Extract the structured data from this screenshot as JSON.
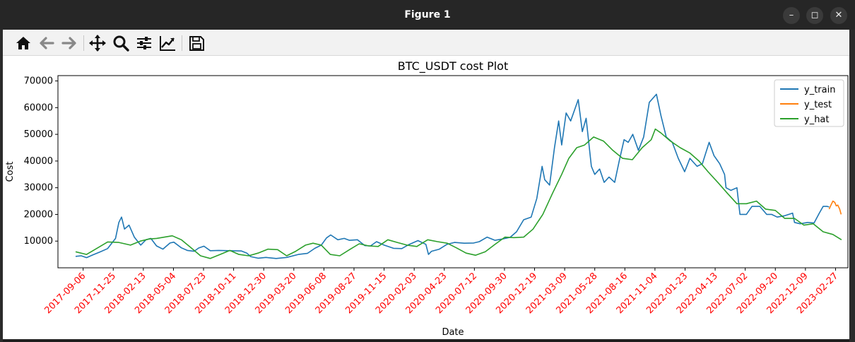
{
  "window": {
    "title": "Figure 1"
  },
  "toolbar": {
    "buttons": [
      {
        "name": "home-icon"
      },
      {
        "name": "back-icon"
      },
      {
        "name": "forward-icon"
      },
      {
        "name": "pan-icon"
      },
      {
        "name": "zoom-icon"
      },
      {
        "name": "configure-subplots-icon"
      },
      {
        "name": "edit-axis-icon"
      },
      {
        "name": "save-icon"
      }
    ]
  },
  "chart_data": {
    "type": "line",
    "title": "BTC_USDT cost Plot",
    "xlabel": "Date",
    "ylabel": "Cost",
    "ylim": [
      0,
      72000
    ],
    "xlim": [
      "2017-07-01",
      "2023-04-01"
    ],
    "yticks": [
      10000,
      20000,
      30000,
      40000,
      50000,
      60000,
      70000
    ],
    "xticks": [
      "2017-09-06",
      "2017-11-25",
      "2018-02-13",
      "2018-05-04",
      "2018-07-23",
      "2018-10-11",
      "2018-12-30",
      "2019-03-20",
      "2019-06-08",
      "2019-08-27",
      "2019-11-15",
      "2020-02-03",
      "2020-04-23",
      "2020-07-12",
      "2020-09-30",
      "2020-12-19",
      "2021-03-09",
      "2021-05-28",
      "2021-08-16",
      "2021-11-04",
      "2022-01-23",
      "2022-04-13",
      "2022-07-02",
      "2022-09-20",
      "2022-12-09",
      "2023-02-27"
    ],
    "tick_label_color": "#ff0000",
    "grid": false,
    "legend_position": "top-right",
    "series": [
      {
        "name": "y_train",
        "color": "#1f77b4",
        "x": [
          "2017-08-17",
          "2017-09-01",
          "2017-09-15",
          "2017-10-01",
          "2017-10-20",
          "2017-11-10",
          "2017-12-01",
          "2017-12-10",
          "2017-12-17",
          "2017-12-25",
          "2018-01-06",
          "2018-01-20",
          "2018-02-06",
          "2018-02-20",
          "2018-03-05",
          "2018-03-20",
          "2018-04-06",
          "2018-04-25",
          "2018-05-05",
          "2018-05-25",
          "2018-06-10",
          "2018-06-28",
          "2018-07-10",
          "2018-07-24",
          "2018-08-10",
          "2018-09-01",
          "2018-10-01",
          "2018-11-01",
          "2018-11-15",
          "2018-11-25",
          "2018-12-15",
          "2019-01-05",
          "2019-02-01",
          "2019-03-01",
          "2019-04-01",
          "2019-04-25",
          "2019-05-15",
          "2019-06-01",
          "2019-06-15",
          "2019-06-26",
          "2019-07-15",
          "2019-08-01",
          "2019-08-15",
          "2019-09-05",
          "2019-09-25",
          "2019-10-10",
          "2019-10-26",
          "2019-11-15",
          "2019-12-10",
          "2020-01-01",
          "2020-01-20",
          "2020-02-13",
          "2020-03-05",
          "2020-03-12",
          "2020-03-20",
          "2020-04-10",
          "2020-04-30",
          "2020-05-20",
          "2020-06-15",
          "2020-07-10",
          "2020-07-25",
          "2020-08-15",
          "2020-09-05",
          "2020-09-25",
          "2020-10-15",
          "2020-11-01",
          "2020-11-20",
          "2020-12-10",
          "2020-12-25",
          "2021-01-08",
          "2021-01-15",
          "2021-01-28",
          "2021-02-10",
          "2021-02-21",
          "2021-03-01",
          "2021-03-13",
          "2021-03-25",
          "2021-04-14",
          "2021-04-25",
          "2021-05-05",
          "2021-05-19",
          "2021-05-28",
          "2021-06-10",
          "2021-06-22",
          "2021-07-05",
          "2021-07-20",
          "2021-08-01",
          "2021-08-14",
          "2021-08-25",
          "2021-09-06",
          "2021-09-21",
          "2021-10-05",
          "2021-10-20",
          "2021-11-08",
          "2021-11-20",
          "2021-12-04",
          "2021-12-20",
          "2022-01-05",
          "2022-01-22",
          "2022-02-05",
          "2022-02-24",
          "2022-03-10",
          "2022-03-28",
          "2022-04-10",
          "2022-04-25",
          "2022-05-08",
          "2022-05-12",
          "2022-05-25",
          "2022-06-10",
          "2022-06-18",
          "2022-07-05",
          "2022-07-20",
          "2022-08-10",
          "2022-08-28",
          "2022-09-10",
          "2022-09-25",
          "2022-10-15",
          "2022-11-05",
          "2022-11-10",
          "2022-11-25",
          "2022-12-15",
          "2023-01-01",
          "2023-01-15",
          "2023-01-25",
          "2023-02-05",
          "2023-02-10"
        ],
        "values": [
          4300,
          4500,
          3800,
          4800,
          5900,
          7200,
          11000,
          17000,
          19000,
          14500,
          16000,
          11500,
          8500,
          10500,
          11000,
          8200,
          7000,
          9300,
          9600,
          7500,
          6500,
          6200,
          7400,
          8100,
          6400,
          6500,
          6400,
          6300,
          5500,
          4200,
          3600,
          3900,
          3500,
          3900,
          5000,
          5400,
          7300,
          8500,
          11200,
          12300,
          10500,
          11000,
          10300,
          10500,
          8300,
          8200,
          9800,
          8500,
          7300,
          7200,
          8700,
          10200,
          8800,
          5000,
          6200,
          7000,
          8800,
          9500,
          9200,
          9300,
          9800,
          11500,
          10300,
          10800,
          11400,
          13500,
          18000,
          19000,
          26000,
          38000,
          33000,
          31000,
          45000,
          55000,
          46000,
          58000,
          55000,
          63000,
          51000,
          56000,
          38000,
          35000,
          37000,
          32000,
          34000,
          32000,
          40000,
          48000,
          47000,
          50000,
          44000,
          49000,
          62000,
          65000,
          57000,
          49000,
          47000,
          41000,
          36000,
          41000,
          38000,
          39000,
          47000,
          42000,
          39000,
          35000,
          30000,
          29000,
          30000,
          20000,
          20000,
          23000,
          23000,
          20000,
          20000,
          19000,
          19500,
          20500,
          17000,
          16500,
          17000,
          16800,
          20500,
          23000,
          23000,
          22800
        ]
      },
      {
        "name": "y_test",
        "color": "#ff7f0e",
        "x": [
          "2023-02-10",
          "2023-02-15",
          "2023-02-20",
          "2023-02-25",
          "2023-03-01",
          "2023-03-05",
          "2023-03-10",
          "2023-03-14"
        ],
        "values": [
          22000,
          23500,
          25000,
          24500,
          23200,
          23500,
          22000,
          20000
        ]
      },
      {
        "name": "y_hat",
        "color": "#2ca02c",
        "x": [
          "2017-08-17",
          "2017-09-15",
          "2017-10-15",
          "2017-11-10",
          "2017-12-10",
          "2018-01-10",
          "2018-02-05",
          "2018-03-01",
          "2018-03-20",
          "2018-04-10",
          "2018-05-01",
          "2018-05-25",
          "2018-06-20",
          "2018-07-15",
          "2018-08-10",
          "2018-09-05",
          "2018-10-01",
          "2018-10-25",
          "2018-11-20",
          "2018-12-15",
          "2019-01-10",
          "2019-02-05",
          "2019-03-01",
          "2019-03-25",
          "2019-04-20",
          "2019-05-10",
          "2019-06-01",
          "2019-06-25",
          "2019-07-20",
          "2019-08-15",
          "2019-09-10",
          "2019-10-05",
          "2019-10-30",
          "2019-11-25",
          "2019-12-20",
          "2020-01-15",
          "2020-02-10",
          "2020-03-10",
          "2020-04-05",
          "2020-05-01",
          "2020-05-25",
          "2020-06-20",
          "2020-07-15",
          "2020-08-10",
          "2020-09-05",
          "2020-10-01",
          "2020-10-25",
          "2020-11-20",
          "2020-12-15",
          "2021-01-10",
          "2021-02-05",
          "2021-03-01",
          "2021-03-20",
          "2021-04-10",
          "2021-05-01",
          "2021-05-25",
          "2021-06-20",
          "2021-07-15",
          "2021-08-10",
          "2021-09-05",
          "2021-10-01",
          "2021-10-25",
          "2021-11-05",
          "2021-11-20",
          "2021-12-15",
          "2022-01-10",
          "2022-02-05",
          "2022-03-01",
          "2022-03-25",
          "2022-04-20",
          "2022-05-15",
          "2022-06-10",
          "2022-07-05",
          "2022-08-01",
          "2022-08-25",
          "2022-09-20",
          "2022-10-15",
          "2022-11-10",
          "2022-12-05",
          "2022-12-30",
          "2023-01-25",
          "2023-02-20",
          "2023-03-15"
        ],
        "values": [
          6000,
          5000,
          7500,
          9700,
          9500,
          8500,
          10000,
          10800,
          11000,
          11500,
          12000,
          10500,
          7500,
          4500,
          3500,
          5000,
          6500,
          5000,
          4500,
          5500,
          7000,
          6800,
          4500,
          6200,
          8500,
          9200,
          8500,
          5000,
          4500,
          6800,
          9000,
          8200,
          8000,
          10500,
          9500,
          8500,
          8000,
          10500,
          9800,
          9200,
          7500,
          5500,
          4700,
          6000,
          8800,
          11500,
          11300,
          11500,
          14500,
          20000,
          28000,
          35000,
          41000,
          45000,
          46000,
          49000,
          47500,
          44000,
          41000,
          40500,
          45000,
          48000,
          52000,
          50500,
          47500,
          45000,
          43000,
          40000,
          36000,
          32000,
          28000,
          24000,
          24000,
          25000,
          22000,
          21500,
          18500,
          18500,
          16000,
          16500,
          13500,
          12500,
          10500
        ]
      }
    ]
  }
}
